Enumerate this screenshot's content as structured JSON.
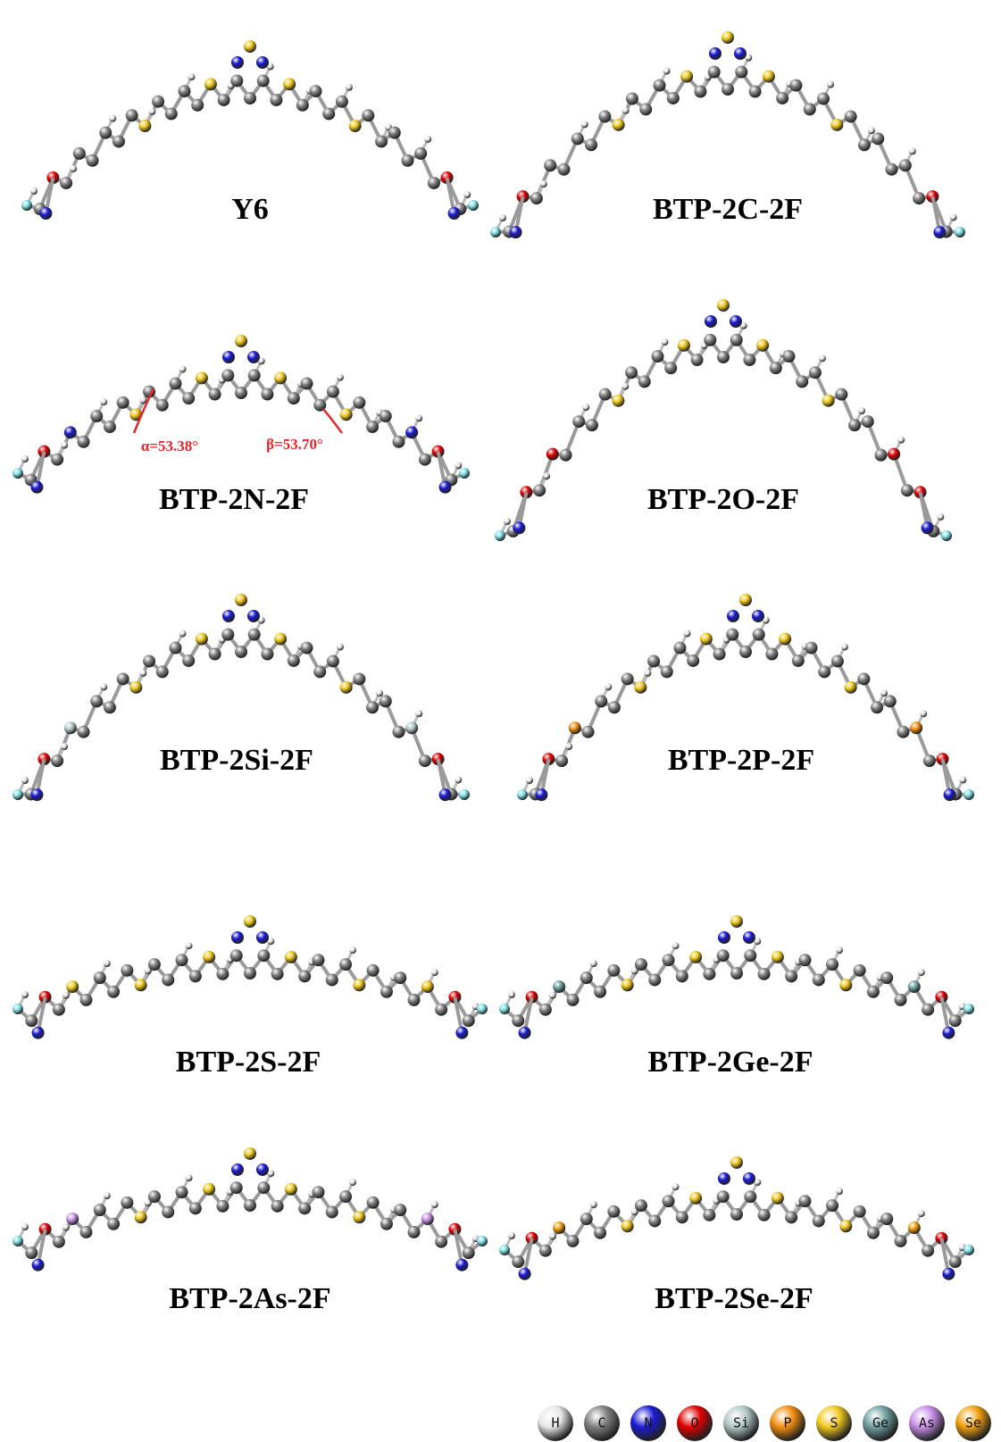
{
  "panels": [
    {
      "label": "Y6"
    },
    {
      "label": "BTP-2C-2F"
    },
    {
      "label": "BTP-2N-2F"
    },
    {
      "label": "BTP-2O-2F"
    },
    {
      "label": "BTP-2Si-2F"
    },
    {
      "label": "BTP-2P-2F"
    },
    {
      "label": "BTP-2S-2F"
    },
    {
      "label": "BTP-2Ge-2F"
    },
    {
      "label": "BTP-2As-2F"
    },
    {
      "label": "BTP-2Se-2F"
    }
  ],
  "annotations": [
    "α=53.38°",
    "β=53.70°"
  ],
  "legend": [
    {
      "label": "H",
      "color": "#e8e8e8"
    },
    {
      "label": "C",
      "color": "#808080"
    },
    {
      "label": "N",
      "color": "#1a1ad0"
    },
    {
      "label": "O",
      "color": "#e00000"
    },
    {
      "label": "Si",
      "color": "#b4c8c8"
    },
    {
      "label": "P",
      "color": "#f08c10"
    },
    {
      "label": "S",
      "color": "#f0c820"
    },
    {
      "label": "Ge",
      "color": "#70a0a0"
    },
    {
      "label": "As",
      "color": "#c890e8"
    },
    {
      "label": "Se",
      "color": "#f0a010"
    }
  ]
}
